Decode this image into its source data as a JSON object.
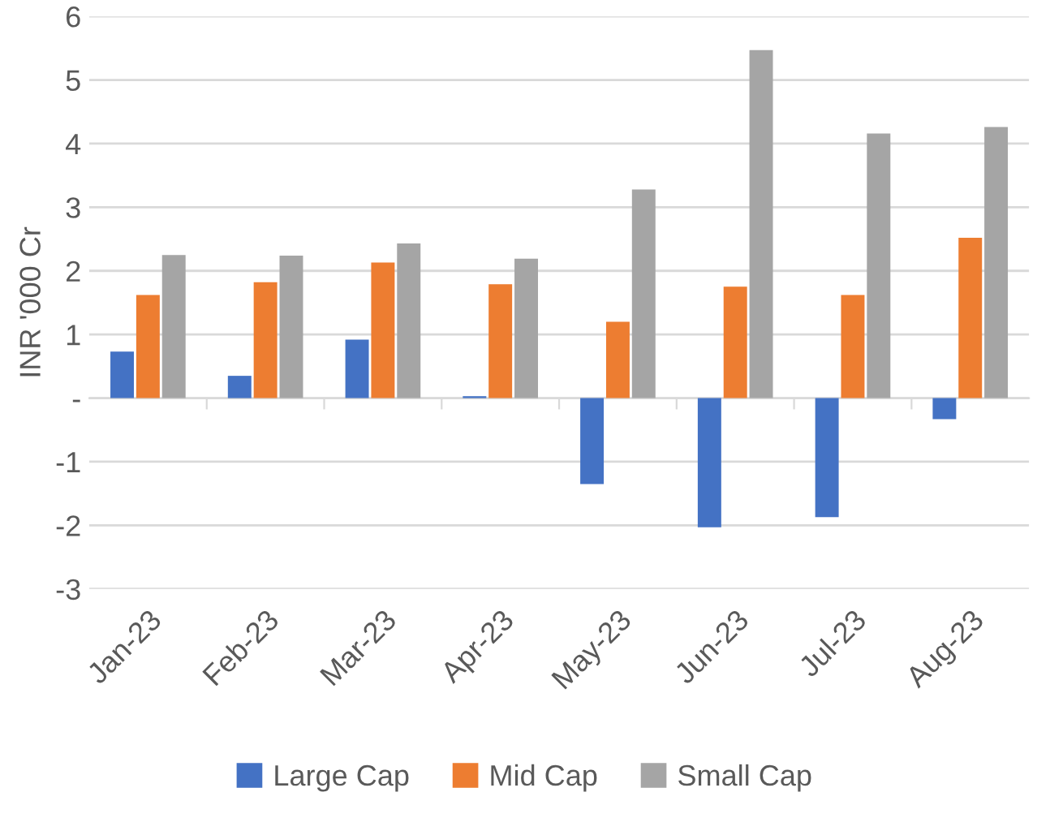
{
  "chart_data": {
    "type": "bar",
    "ylabel": "INR '000 Cr",
    "categories": [
      "Jan-23",
      "Feb-23",
      "Mar-23",
      "Apr-23",
      "May-23",
      "Jun-23",
      "Jul-23",
      "Aug-23"
    ],
    "series": [
      {
        "name": "Large Cap",
        "color": "#4472c4",
        "values": [
          0.73,
          0.35,
          0.92,
          0.03,
          -1.35,
          -2.03,
          -1.87,
          -0.33
        ]
      },
      {
        "name": "Mid Cap",
        "color": "#ed7d31",
        "values": [
          1.62,
          1.82,
          2.13,
          1.79,
          1.2,
          1.75,
          1.62,
          2.52
        ]
      },
      {
        "name": "Small Cap",
        "color": "#a5a5a5",
        "values": [
          2.25,
          2.24,
          2.43,
          2.19,
          3.28,
          5.47,
          4.16,
          4.26
        ]
      }
    ],
    "ylim": [
      -3,
      6
    ],
    "yticks": [
      -3,
      -2,
      -1,
      {
        "value": 0,
        "label": "-"
      },
      1,
      2,
      3,
      4,
      5,
      6
    ],
    "grid": "y",
    "legend": "bottom"
  }
}
